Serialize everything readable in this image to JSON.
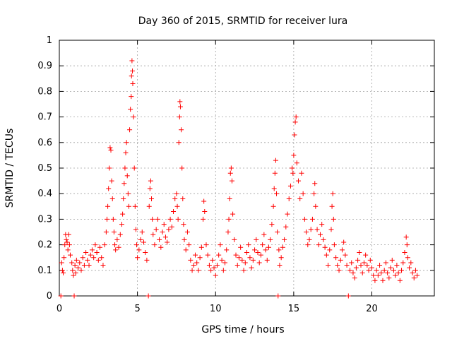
{
  "chart_data": {
    "type": "scatter",
    "title": "Day 360 of 2015, SRMTID for receiver lura",
    "xlabel": "GPS time / hours",
    "ylabel": "SRMTID / TECUs",
    "xlim": [
      0,
      24
    ],
    "ylim": [
      0,
      1
    ],
    "x_ticks": [
      0,
      5,
      10,
      15,
      20
    ],
    "y_ticks": [
      0,
      0.1,
      0.2,
      0.3,
      0.4,
      0.5,
      0.6,
      0.7,
      0.8,
      0.9,
      1
    ],
    "x_tick_labels": [
      "0",
      "5",
      "10",
      "15",
      "20"
    ],
    "y_tick_labels": [
      "0",
      "0.1",
      "0.2",
      "0.3",
      "0.4",
      "0.5",
      "0.6",
      "0.7",
      "0.8",
      "0.9",
      "1"
    ],
    "grid": true,
    "marker": "+",
    "marker_color": "#ff0000",
    "series": [
      {
        "name": "SRMTID",
        "points": [
          [
            0.1,
            0.0
          ],
          [
            0.15,
            0.13
          ],
          [
            0.2,
            0.1
          ],
          [
            0.25,
            0.09
          ],
          [
            0.3,
            0.15
          ],
          [
            0.35,
            0.2
          ],
          [
            0.4,
            0.24
          ],
          [
            0.45,
            0.22
          ],
          [
            0.5,
            0.21
          ],
          [
            0.55,
            0.18
          ],
          [
            0.6,
            0.24
          ],
          [
            0.65,
            0.2
          ],
          [
            0.7,
            0.16
          ],
          [
            0.8,
            0.13
          ],
          [
            0.85,
            0.1
          ],
          [
            0.9,
            0.08
          ],
          [
            0.95,
            0.0
          ],
          [
            1.0,
            0.12
          ],
          [
            1.05,
            0.09
          ],
          [
            1.1,
            0.14
          ],
          [
            1.2,
            0.11
          ],
          [
            1.3,
            0.13
          ],
          [
            1.4,
            0.1
          ],
          [
            1.5,
            0.15
          ],
          [
            1.6,
            0.12
          ],
          [
            1.7,
            0.17
          ],
          [
            1.8,
            0.14
          ],
          [
            1.9,
            0.12
          ],
          [
            2.0,
            0.16
          ],
          [
            2.1,
            0.18
          ],
          [
            2.2,
            0.15
          ],
          [
            2.3,
            0.2
          ],
          [
            2.4,
            0.17
          ],
          [
            2.5,
            0.14
          ],
          [
            2.6,
            0.19
          ],
          [
            2.7,
            0.15
          ],
          [
            2.8,
            0.12
          ],
          [
            2.9,
            0.2
          ],
          [
            3.0,
            0.25
          ],
          [
            3.05,
            0.3
          ],
          [
            3.1,
            0.35
          ],
          [
            3.15,
            0.42
          ],
          [
            3.2,
            0.5
          ],
          [
            3.25,
            0.58
          ],
          [
            3.3,
            0.57
          ],
          [
            3.35,
            0.45
          ],
          [
            3.4,
            0.38
          ],
          [
            3.45,
            0.3
          ],
          [
            3.5,
            0.25
          ],
          [
            3.55,
            0.2
          ],
          [
            3.6,
            0.18
          ],
          [
            3.7,
            0.22
          ],
          [
            3.8,
            0.19
          ],
          [
            3.9,
            0.24
          ],
          [
            4.0,
            0.28
          ],
          [
            4.05,
            0.32
          ],
          [
            4.1,
            0.38
          ],
          [
            4.15,
            0.44
          ],
          [
            4.2,
            0.5
          ],
          [
            4.25,
            0.56
          ],
          [
            4.3,
            0.6
          ],
          [
            4.35,
            0.47
          ],
          [
            4.4,
            0.4
          ],
          [
            4.45,
            0.35
          ],
          [
            4.5,
            0.65
          ],
          [
            4.55,
            0.73
          ],
          [
            4.6,
            0.78
          ],
          [
            4.62,
            0.86
          ],
          [
            4.65,
            0.92
          ],
          [
            4.68,
            0.88
          ],
          [
            4.7,
            0.83
          ],
          [
            4.75,
            0.7
          ],
          [
            4.8,
            0.5
          ],
          [
            4.85,
            0.35
          ],
          [
            4.9,
            0.26
          ],
          [
            4.95,
            0.2
          ],
          [
            5.0,
            0.15
          ],
          [
            5.1,
            0.18
          ],
          [
            5.2,
            0.22
          ],
          [
            5.3,
            0.25
          ],
          [
            5.4,
            0.21
          ],
          [
            5.5,
            0.17
          ],
          [
            5.6,
            0.14
          ],
          [
            5.7,
            0.0
          ],
          [
            5.75,
            0.35
          ],
          [
            5.8,
            0.42
          ],
          [
            5.85,
            0.45
          ],
          [
            5.9,
            0.38
          ],
          [
            5.95,
            0.3
          ],
          [
            6.0,
            0.24
          ],
          [
            6.1,
            0.2
          ],
          [
            6.2,
            0.26
          ],
          [
            6.3,
            0.3
          ],
          [
            6.4,
            0.22
          ],
          [
            6.5,
            0.19
          ],
          [
            6.6,
            0.25
          ],
          [
            6.7,
            0.28
          ],
          [
            6.8,
            0.23
          ],
          [
            6.9,
            0.21
          ],
          [
            7.0,
            0.26
          ],
          [
            7.1,
            0.3
          ],
          [
            7.2,
            0.27
          ],
          [
            7.3,
            0.33
          ],
          [
            7.4,
            0.38
          ],
          [
            7.5,
            0.4
          ],
          [
            7.55,
            0.35
          ],
          [
            7.6,
            0.3
          ],
          [
            7.65,
            0.6
          ],
          [
            7.7,
            0.7
          ],
          [
            7.72,
            0.76
          ],
          [
            7.75,
            0.74
          ],
          [
            7.8,
            0.65
          ],
          [
            7.85,
            0.5
          ],
          [
            7.9,
            0.38
          ],
          [
            7.95,
            0.28
          ],
          [
            8.0,
            0.22
          ],
          [
            8.1,
            0.18
          ],
          [
            8.2,
            0.25
          ],
          [
            8.3,
            0.2
          ],
          [
            8.4,
            0.14
          ],
          [
            8.5,
            0.1
          ],
          [
            8.6,
            0.12
          ],
          [
            8.7,
            0.16
          ],
          [
            8.8,
            0.13
          ],
          [
            8.9,
            0.1
          ],
          [
            9.0,
            0.15
          ],
          [
            9.1,
            0.19
          ],
          [
            9.2,
            0.3
          ],
          [
            9.25,
            0.37
          ],
          [
            9.3,
            0.33
          ],
          [
            9.4,
            0.2
          ],
          [
            9.5,
            0.16
          ],
          [
            9.6,
            0.12
          ],
          [
            9.7,
            0.1
          ],
          [
            9.8,
            0.14
          ],
          [
            9.9,
            0.11
          ],
          [
            10.0,
            0.08
          ],
          [
            10.1,
            0.12
          ],
          [
            10.2,
            0.16
          ],
          [
            10.3,
            0.2
          ],
          [
            10.4,
            0.14
          ],
          [
            10.5,
            0.1
          ],
          [
            10.6,
            0.13
          ],
          [
            10.7,
            0.18
          ],
          [
            10.8,
            0.25
          ],
          [
            10.85,
            0.3
          ],
          [
            10.9,
            0.38
          ],
          [
            10.95,
            0.48
          ],
          [
            11.0,
            0.5
          ],
          [
            11.05,
            0.45
          ],
          [
            11.1,
            0.32
          ],
          [
            11.2,
            0.22
          ],
          [
            11.3,
            0.16
          ],
          [
            11.4,
            0.12
          ],
          [
            11.5,
            0.15
          ],
          [
            11.6,
            0.19
          ],
          [
            11.7,
            0.14
          ],
          [
            11.8,
            0.1
          ],
          [
            11.9,
            0.13
          ],
          [
            12.0,
            0.17
          ],
          [
            12.1,
            0.2
          ],
          [
            12.2,
            0.15
          ],
          [
            12.3,
            0.11
          ],
          [
            12.4,
            0.14
          ],
          [
            12.5,
            0.18
          ],
          [
            12.6,
            0.22
          ],
          [
            12.7,
            0.17
          ],
          [
            12.8,
            0.13
          ],
          [
            12.9,
            0.16
          ],
          [
            13.0,
            0.2
          ],
          [
            13.1,
            0.24
          ],
          [
            13.2,
            0.18
          ],
          [
            13.3,
            0.14
          ],
          [
            13.4,
            0.19
          ],
          [
            13.5,
            0.22
          ],
          [
            13.6,
            0.28
          ],
          [
            13.7,
            0.35
          ],
          [
            13.75,
            0.42
          ],
          [
            13.8,
            0.48
          ],
          [
            13.85,
            0.53
          ],
          [
            13.9,
            0.4
          ],
          [
            13.95,
            0.25
          ],
          [
            14.0,
            0.0
          ],
          [
            14.05,
            0.18
          ],
          [
            14.1,
            0.12
          ],
          [
            14.2,
            0.15
          ],
          [
            14.3,
            0.19
          ],
          [
            14.4,
            0.22
          ],
          [
            14.5,
            0.27
          ],
          [
            14.6,
            0.32
          ],
          [
            14.7,
            0.38
          ],
          [
            14.8,
            0.43
          ],
          [
            14.9,
            0.5
          ],
          [
            14.95,
            0.48
          ],
          [
            15.0,
            0.55
          ],
          [
            15.05,
            0.63
          ],
          [
            15.1,
            0.68
          ],
          [
            15.15,
            0.7
          ],
          [
            15.2,
            0.52
          ],
          [
            15.3,
            0.45
          ],
          [
            15.4,
            0.38
          ],
          [
            15.5,
            0.48
          ],
          [
            15.6,
            0.4
          ],
          [
            15.7,
            0.3
          ],
          [
            15.8,
            0.25
          ],
          [
            15.9,
            0.2
          ],
          [
            16.0,
            0.22
          ],
          [
            16.1,
            0.26
          ],
          [
            16.2,
            0.3
          ],
          [
            16.3,
            0.4
          ],
          [
            16.35,
            0.44
          ],
          [
            16.4,
            0.35
          ],
          [
            16.5,
            0.26
          ],
          [
            16.6,
            0.2
          ],
          [
            16.7,
            0.24
          ],
          [
            16.8,
            0.28
          ],
          [
            16.9,
            0.22
          ],
          [
            17.0,
            0.19
          ],
          [
            17.1,
            0.16
          ],
          [
            17.2,
            0.12
          ],
          [
            17.3,
            0.18
          ],
          [
            17.4,
            0.26
          ],
          [
            17.45,
            0.35
          ],
          [
            17.5,
            0.4
          ],
          [
            17.55,
            0.3
          ],
          [
            17.6,
            0.2
          ],
          [
            17.7,
            0.15
          ],
          [
            17.8,
            0.12
          ],
          [
            17.9,
            0.1
          ],
          [
            18.0,
            0.14
          ],
          [
            18.1,
            0.18
          ],
          [
            18.2,
            0.21
          ],
          [
            18.3,
            0.16
          ],
          [
            18.4,
            0.12
          ],
          [
            18.5,
            0.0
          ],
          [
            18.6,
            0.1
          ],
          [
            18.7,
            0.13
          ],
          [
            18.8,
            0.09
          ],
          [
            18.9,
            0.07
          ],
          [
            19.0,
            0.11
          ],
          [
            19.1,
            0.14
          ],
          [
            19.2,
            0.17
          ],
          [
            19.3,
            0.12
          ],
          [
            19.4,
            0.09
          ],
          [
            19.5,
            0.13
          ],
          [
            19.6,
            0.16
          ],
          [
            19.7,
            0.12
          ],
          [
            19.8,
            0.1
          ],
          [
            19.9,
            0.14
          ],
          [
            20.0,
            0.11
          ],
          [
            20.1,
            0.08
          ],
          [
            20.2,
            0.06
          ],
          [
            20.3,
            0.1
          ],
          [
            20.4,
            0.08
          ],
          [
            20.5,
            0.12
          ],
          [
            20.6,
            0.09
          ],
          [
            20.7,
            0.06
          ],
          [
            20.8,
            0.1
          ],
          [
            20.9,
            0.13
          ],
          [
            21.0,
            0.09
          ],
          [
            21.1,
            0.07
          ],
          [
            21.2,
            0.11
          ],
          [
            21.3,
            0.14
          ],
          [
            21.4,
            0.1
          ],
          [
            21.5,
            0.08
          ],
          [
            21.6,
            0.12
          ],
          [
            21.7,
            0.09
          ],
          [
            21.8,
            0.06
          ],
          [
            21.9,
            0.1
          ],
          [
            22.0,
            0.13
          ],
          [
            22.1,
            0.17
          ],
          [
            22.2,
            0.23
          ],
          [
            22.25,
            0.2
          ],
          [
            22.3,
            0.15
          ],
          [
            22.4,
            0.11
          ],
          [
            22.5,
            0.13
          ],
          [
            22.6,
            0.09
          ],
          [
            22.7,
            0.07
          ],
          [
            22.8,
            0.1
          ],
          [
            22.9,
            0.08
          ]
        ]
      }
    ]
  }
}
